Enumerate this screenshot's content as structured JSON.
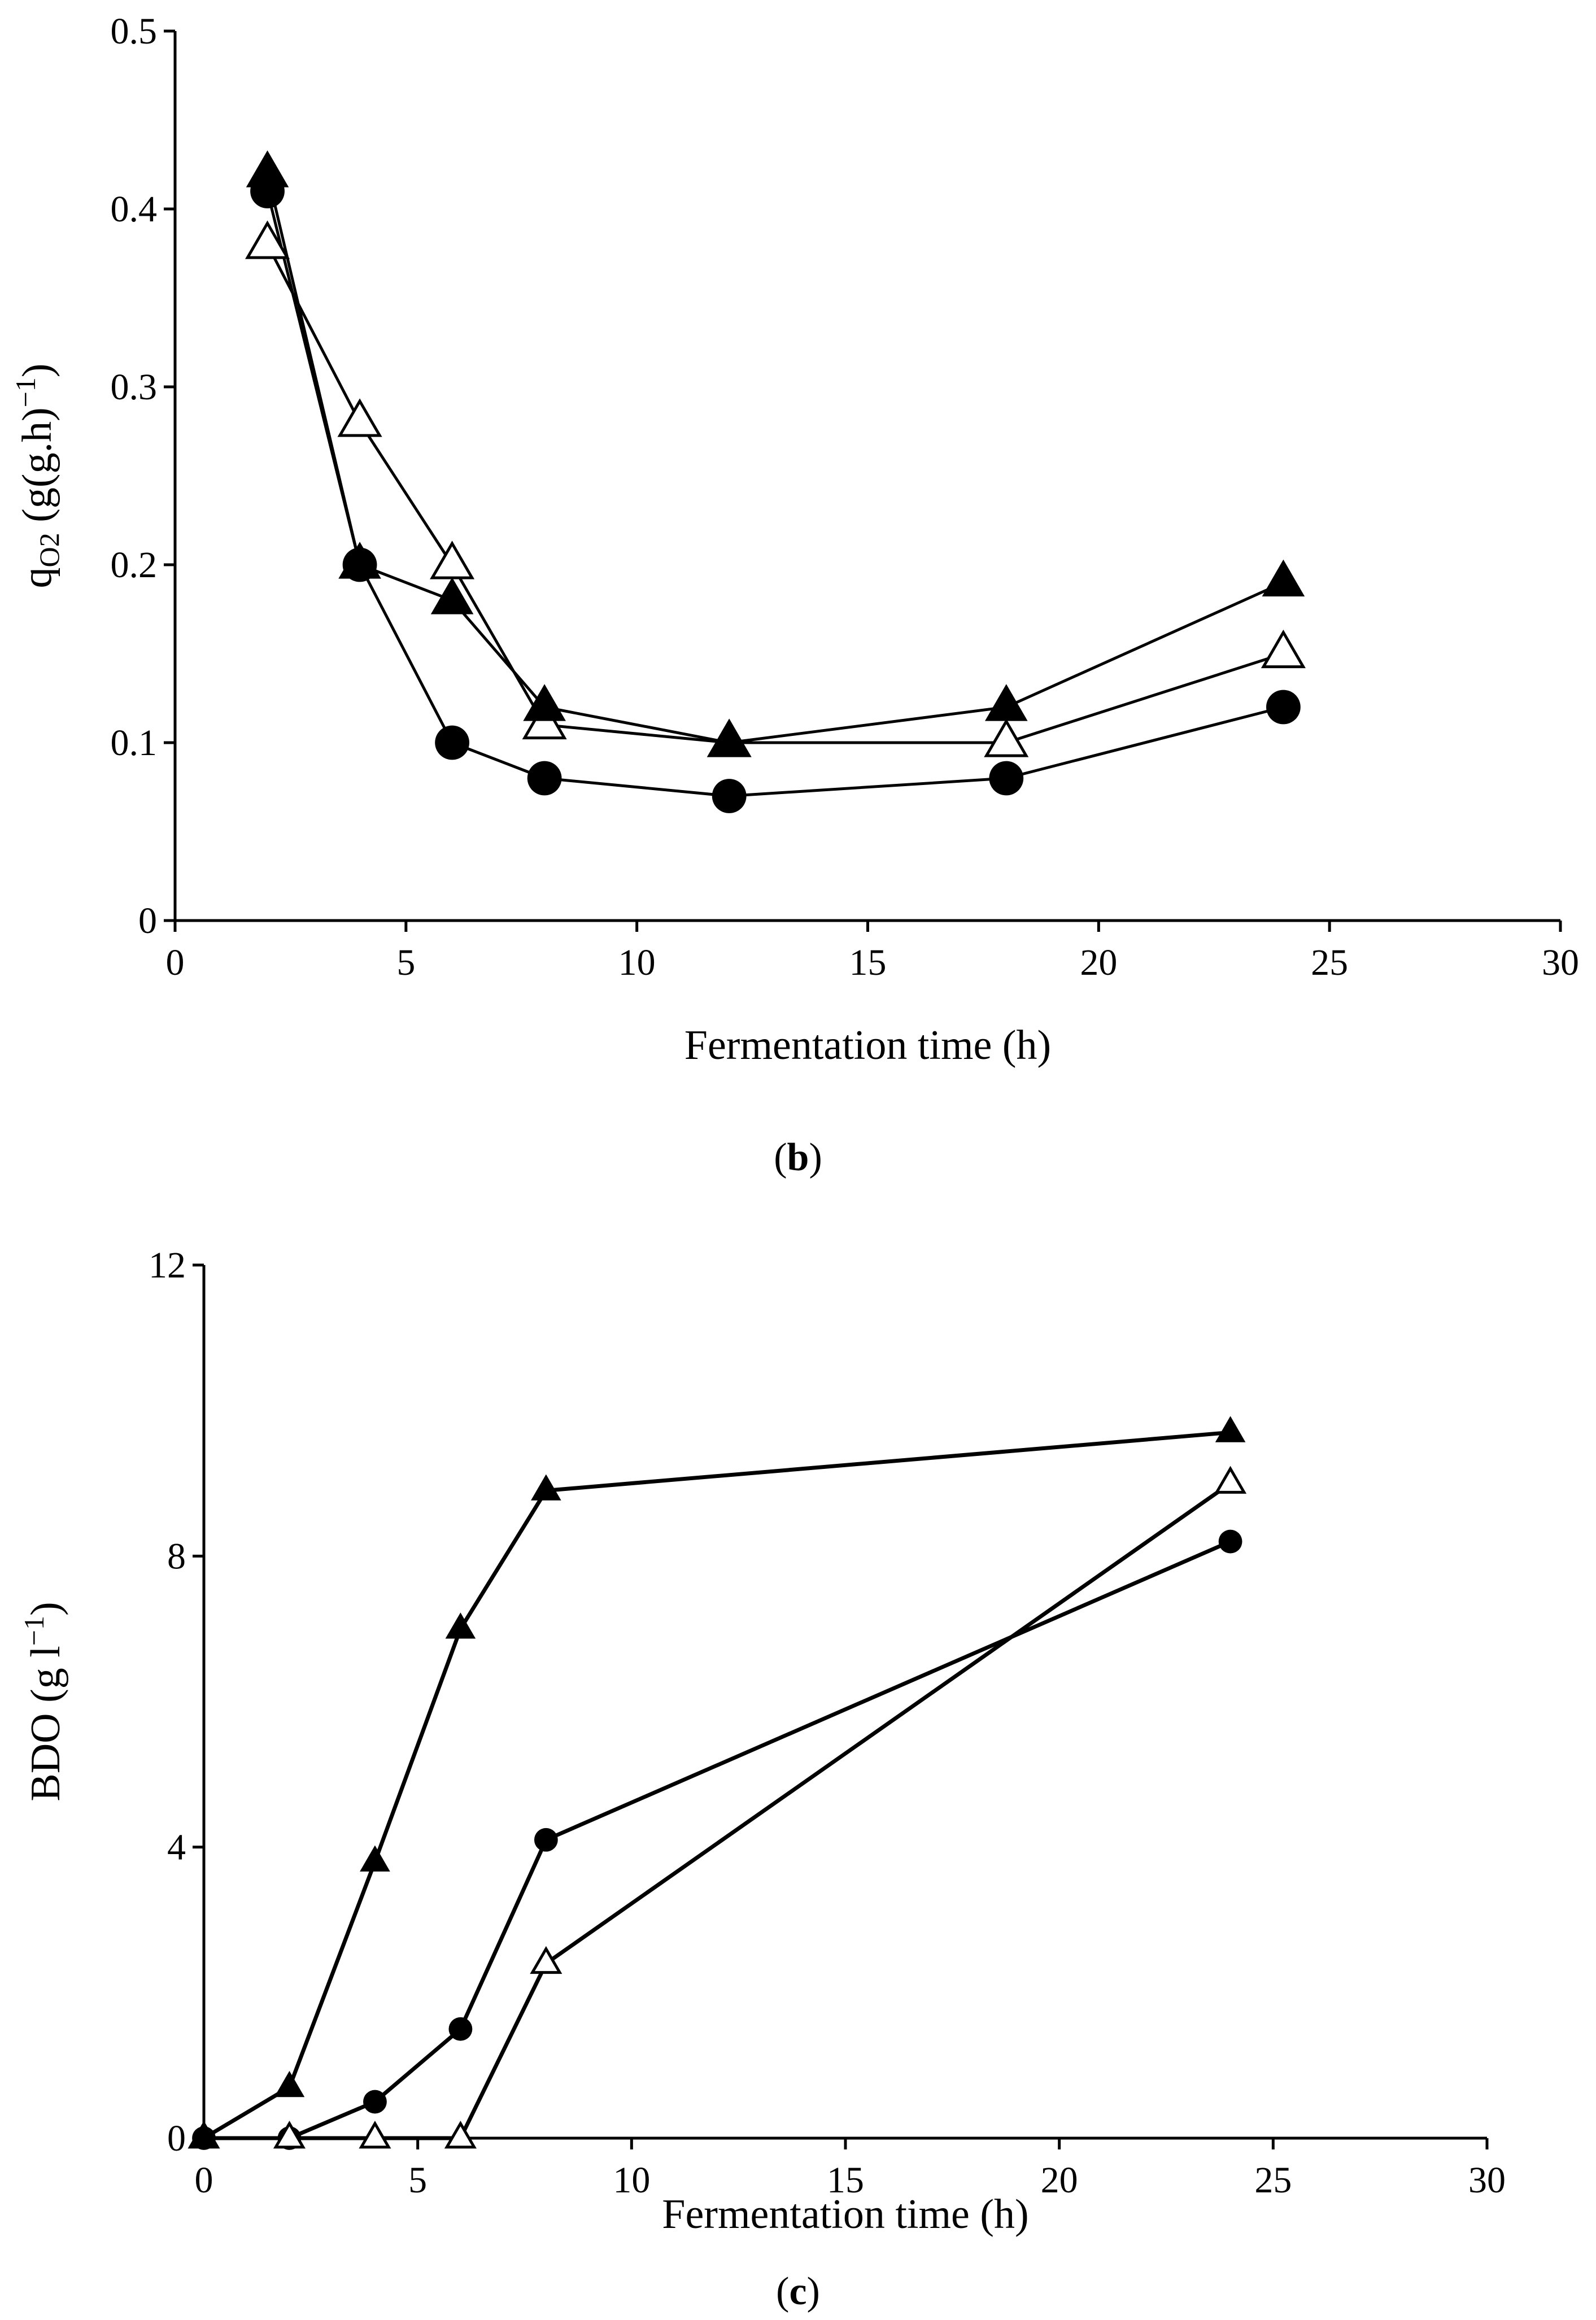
{
  "chart_data": [
    {
      "type": "line",
      "panel": "b",
      "panel_label": {
        "open": "(",
        "letter": "b",
        "close": ")"
      },
      "xlabel": "Fermentation time (h)",
      "ylabel": {
        "main": "q",
        "sub": "O2",
        "rest": " (g(g.h)",
        "sup": "−1",
        "end": ")"
      },
      "xlim": [
        0,
        30
      ],
      "ylim": [
        0,
        0.5
      ],
      "xticks": [
        0,
        5,
        10,
        15,
        20,
        25,
        30
      ],
      "xtick_labels": [
        "0",
        "5",
        "10",
        "15",
        "20",
        "25",
        "30"
      ],
      "yticks": [
        0,
        0.1,
        0.2,
        0.3,
        0.4,
        0.5
      ],
      "ytick_labels": [
        "0",
        "0.1",
        "0.2",
        "0.3",
        "0.4",
        "0.5"
      ],
      "series": [
        {
          "marker": "circle-filled",
          "x": [
            2,
            4,
            6,
            8,
            12,
            18,
            24
          ],
          "y": [
            0.41,
            0.2,
            0.1,
            0.08,
            0.07,
            0.08,
            0.12
          ]
        },
        {
          "marker": "triangle-open",
          "x": [
            2,
            4,
            6,
            8,
            12,
            18,
            24
          ],
          "y": [
            0.38,
            0.28,
            0.2,
            0.11,
            0.1,
            0.1,
            0.15
          ]
        },
        {
          "marker": "triangle-filled",
          "x": [
            2,
            4,
            6,
            8,
            12,
            18,
            24
          ],
          "y": [
            0.42,
            0.2,
            0.18,
            0.12,
            0.1,
            0.12,
            0.19
          ]
        }
      ]
    },
    {
      "type": "line",
      "panel": "c",
      "panel_label": {
        "open": "(",
        "letter": "c",
        "close": ")"
      },
      "xlabel": "Fermentation time (h)",
      "ylabel": {
        "main": "BDO (g l",
        "sup": "−1",
        "end": ")"
      },
      "xlim": [
        0,
        30
      ],
      "ylim": [
        0,
        12
      ],
      "xticks": [
        0,
        5,
        10,
        15,
        20,
        25,
        30
      ],
      "xtick_labels": [
        "0",
        "5",
        "10",
        "15",
        "20",
        "25",
        "30"
      ],
      "yticks": [
        0,
        4,
        8,
        12
      ],
      "ytick_labels": [
        "0",
        "4",
        "8",
        "12"
      ],
      "series": [
        {
          "marker": "circle-filled",
          "x": [
            0,
            2,
            4,
            6,
            8,
            24
          ],
          "y": [
            0,
            0,
            0.5,
            1.5,
            4.1,
            8.2
          ]
        },
        {
          "marker": "triangle-open",
          "x": [
            0,
            2,
            4,
            6,
            8,
            24
          ],
          "y": [
            0,
            0,
            0,
            0,
            2.4,
            9.0
          ]
        },
        {
          "marker": "triangle-filled",
          "x": [
            0,
            2,
            4,
            6,
            8,
            24
          ],
          "y": [
            0,
            0.7,
            3.8,
            7.0,
            8.9,
            9.7
          ]
        }
      ]
    }
  ]
}
